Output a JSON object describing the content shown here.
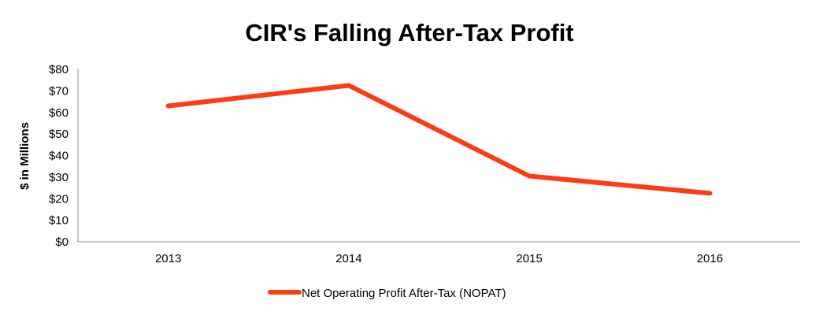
{
  "chart_data": {
    "type": "line",
    "title": "CIR's Falling After-Tax Profit",
    "xlabel": "",
    "ylabel": "$ in Millions",
    "categories": [
      "2013",
      "2014",
      "2015",
      "2016"
    ],
    "series": [
      {
        "name": "Net Operating Profit After-Tax (NOPAT)",
        "values": [
          63,
          72.5,
          30.5,
          22.5
        ],
        "color": "#ff3b14"
      }
    ],
    "ylim": [
      0,
      80
    ],
    "yticks": [
      0,
      10,
      20,
      30,
      40,
      50,
      60,
      70,
      80
    ],
    "ytick_labels": [
      "$0",
      "$10",
      "$20",
      "$30",
      "$40",
      "$50",
      "$60",
      "$70",
      "$80"
    ],
    "grid": false,
    "legend_position": "bottom"
  }
}
